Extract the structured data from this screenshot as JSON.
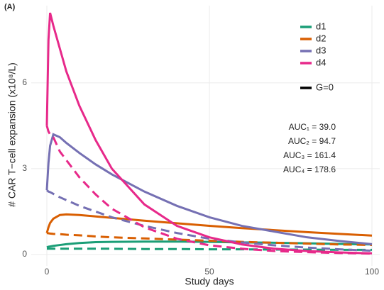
{
  "chart_data": {
    "type": "line",
    "panel_label": "(A)",
    "x_label": "Study days",
    "y_label": "# CAR T−cell expansion (x10⁸/L)",
    "x": [
      0,
      0.5,
      1,
      2,
      4,
      6,
      10,
      15,
      20,
      30,
      40,
      50,
      60,
      70,
      80,
      90,
      100
    ],
    "series": [
      {
        "name": "d1",
        "color": "#1b9e77",
        "values": [
          0.25,
          0.27,
          0.28,
          0.3,
          0.33,
          0.36,
          0.4,
          0.43,
          0.44,
          0.45,
          0.45,
          0.44,
          0.42,
          0.41,
          0.39,
          0.37,
          0.35
        ],
        "dashed_values": [
          0.2,
          0.2,
          0.2,
          0.2,
          0.2,
          0.2,
          0.2,
          0.2,
          0.2,
          0.19,
          0.19,
          0.18,
          0.18,
          0.17,
          0.17,
          0.16,
          0.16
        ]
      },
      {
        "name": "d2",
        "color": "#d95f02",
        "values": [
          0.75,
          0.95,
          1.1,
          1.25,
          1.38,
          1.4,
          1.38,
          1.33,
          1.28,
          1.18,
          1.09,
          1.0,
          0.92,
          0.85,
          0.78,
          0.72,
          0.66
        ],
        "dashed_values": [
          0.75,
          0.74,
          0.73,
          0.72,
          0.71,
          0.69,
          0.67,
          0.63,
          0.6,
          0.56,
          0.52,
          0.48,
          0.44,
          0.41,
          0.38,
          0.35,
          0.33
        ]
      },
      {
        "name": "d3",
        "color": "#7570b3",
        "values": [
          2.25,
          3.2,
          3.8,
          4.2,
          4.1,
          3.9,
          3.55,
          3.15,
          2.8,
          2.2,
          1.7,
          1.3,
          1.0,
          0.8,
          0.6,
          0.47,
          0.36
        ],
        "dashed_values": [
          2.25,
          2.2,
          2.18,
          2.12,
          2.0,
          1.9,
          1.7,
          1.5,
          1.3,
          1.0,
          0.75,
          0.55,
          0.42,
          0.32,
          0.24,
          0.18,
          0.13
        ]
      },
      {
        "name": "d4",
        "color": "#e7298a",
        "values": [
          4.5,
          7.5,
          8.45,
          8.0,
          7.2,
          6.4,
          5.2,
          4.0,
          3.0,
          1.75,
          1.0,
          0.6,
          0.35,
          0.2,
          0.12,
          0.07,
          0.04
        ],
        "dashed_values": [
          4.5,
          4.3,
          4.2,
          4.1,
          3.6,
          3.3,
          2.7,
          2.1,
          1.6,
          0.95,
          0.55,
          0.32,
          0.2,
          0.12,
          0.08,
          0.05,
          0.03
        ]
      }
    ],
    "linetype_legend": "G=0",
    "annotations": [
      "AUC₁ =  39.0",
      "AUC₂ =  94.7",
      "AUC₃ = 161.4",
      "AUC₄ = 178.6"
    ],
    "xlim": [
      -4.8,
      102.4
    ],
    "xticks": [
      0,
      50,
      100
    ],
    "ylim": [
      -0.4,
      8.7
    ],
    "yticks": [
      0,
      3,
      6
    ],
    "grid": true
  }
}
